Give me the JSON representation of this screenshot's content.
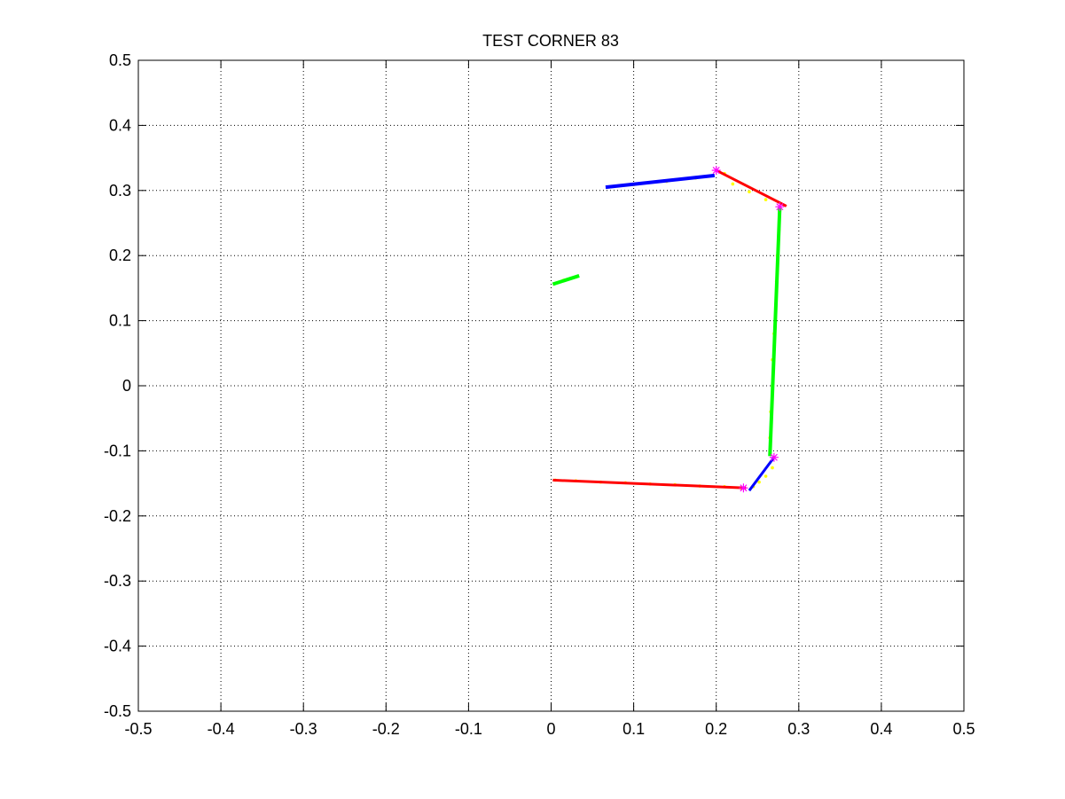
{
  "chart_data": {
    "type": "line",
    "title": "TEST CORNER 83",
    "xlabel": "",
    "ylabel": "",
    "xlim": [
      -0.5,
      0.5
    ],
    "ylim": [
      -0.5,
      0.5
    ],
    "grid": true,
    "xticks": [
      -0.5,
      -0.4,
      -0.3,
      -0.2,
      -0.1,
      0,
      0.1,
      0.2,
      0.3,
      0.4,
      0.5
    ],
    "yticks": [
      -0.5,
      -0.4,
      -0.3,
      -0.2,
      -0.1,
      0,
      0.1,
      0.2,
      0.3,
      0.4,
      0.5
    ],
    "xtick_labels": [
      "-0.5",
      "-0.4",
      "-0.3",
      "-0.2",
      "-0.1",
      "0",
      "0.1",
      "0.2",
      "0.3",
      "0.4",
      "0.5"
    ],
    "ytick_labels": [
      "-0.5",
      "-0.4",
      "-0.3",
      "-0.2",
      "-0.1",
      "0",
      "0.1",
      "0.2",
      "0.3",
      "0.4",
      "0.5"
    ],
    "scan_points": {
      "color": "#ffff00",
      "points": [
        [
          0.005,
          -0.145
        ],
        [
          0.03,
          -0.146
        ],
        [
          0.06,
          -0.148
        ],
        [
          0.09,
          -0.149
        ],
        [
          0.12,
          -0.151
        ],
        [
          0.15,
          -0.152
        ],
        [
          0.18,
          -0.154
        ],
        [
          0.21,
          -0.155
        ],
        [
          0.23,
          -0.157
        ],
        [
          0.245,
          -0.155
        ],
        [
          0.252,
          -0.148
        ],
        [
          0.26,
          -0.139
        ],
        [
          0.268,
          -0.126
        ],
        [
          0.265,
          -0.08
        ],
        [
          0.266,
          -0.04
        ],
        [
          0.268,
          0.0
        ],
        [
          0.268,
          0.04
        ],
        [
          0.27,
          0.08
        ],
        [
          0.272,
          0.12
        ],
        [
          0.273,
          0.16
        ],
        [
          0.274,
          0.2
        ],
        [
          0.276,
          0.24
        ],
        [
          0.26,
          0.286
        ],
        [
          0.24,
          0.298
        ],
        [
          0.22,
          0.31
        ],
        [
          0.21,
          0.326
        ],
        [
          0.1,
          0.309
        ],
        [
          0.14,
          0.314
        ],
        [
          0.175,
          0.319
        ],
        [
          0.015,
          0.162
        ],
        [
          0.03,
          0.167
        ]
      ]
    },
    "segments": [
      {
        "color": "#0000ff",
        "width": 4,
        "points": [
          [
            0.066,
            0.305
          ],
          [
            0.198,
            0.323
          ]
        ]
      },
      {
        "color": "#ff0000",
        "width": 3,
        "points": [
          [
            0.2,
            0.331
          ],
          [
            0.285,
            0.276
          ]
        ]
      },
      {
        "color": "#00ff00",
        "width": 4,
        "points": [
          [
            0.277,
            0.275
          ],
          [
            0.265,
            -0.108
          ]
        ]
      },
      {
        "color": "#0000ff",
        "width": 3,
        "points": [
          [
            0.27,
            -0.11
          ],
          [
            0.24,
            -0.161
          ]
        ]
      },
      {
        "color": "#ff0000",
        "width": 3,
        "points": [
          [
            0.002,
            -0.145
          ],
          [
            0.236,
            -0.157
          ]
        ]
      },
      {
        "color": "#00ff00",
        "width": 4,
        "points": [
          [
            0.002,
            0.156
          ],
          [
            0.034,
            0.169
          ]
        ]
      }
    ],
    "corners": {
      "color": "#ff00ff",
      "points": [
        [
          0.2,
          0.331
        ],
        [
          0.277,
          0.275
        ],
        [
          0.27,
          -0.11
        ],
        [
          0.233,
          -0.157
        ]
      ]
    }
  }
}
